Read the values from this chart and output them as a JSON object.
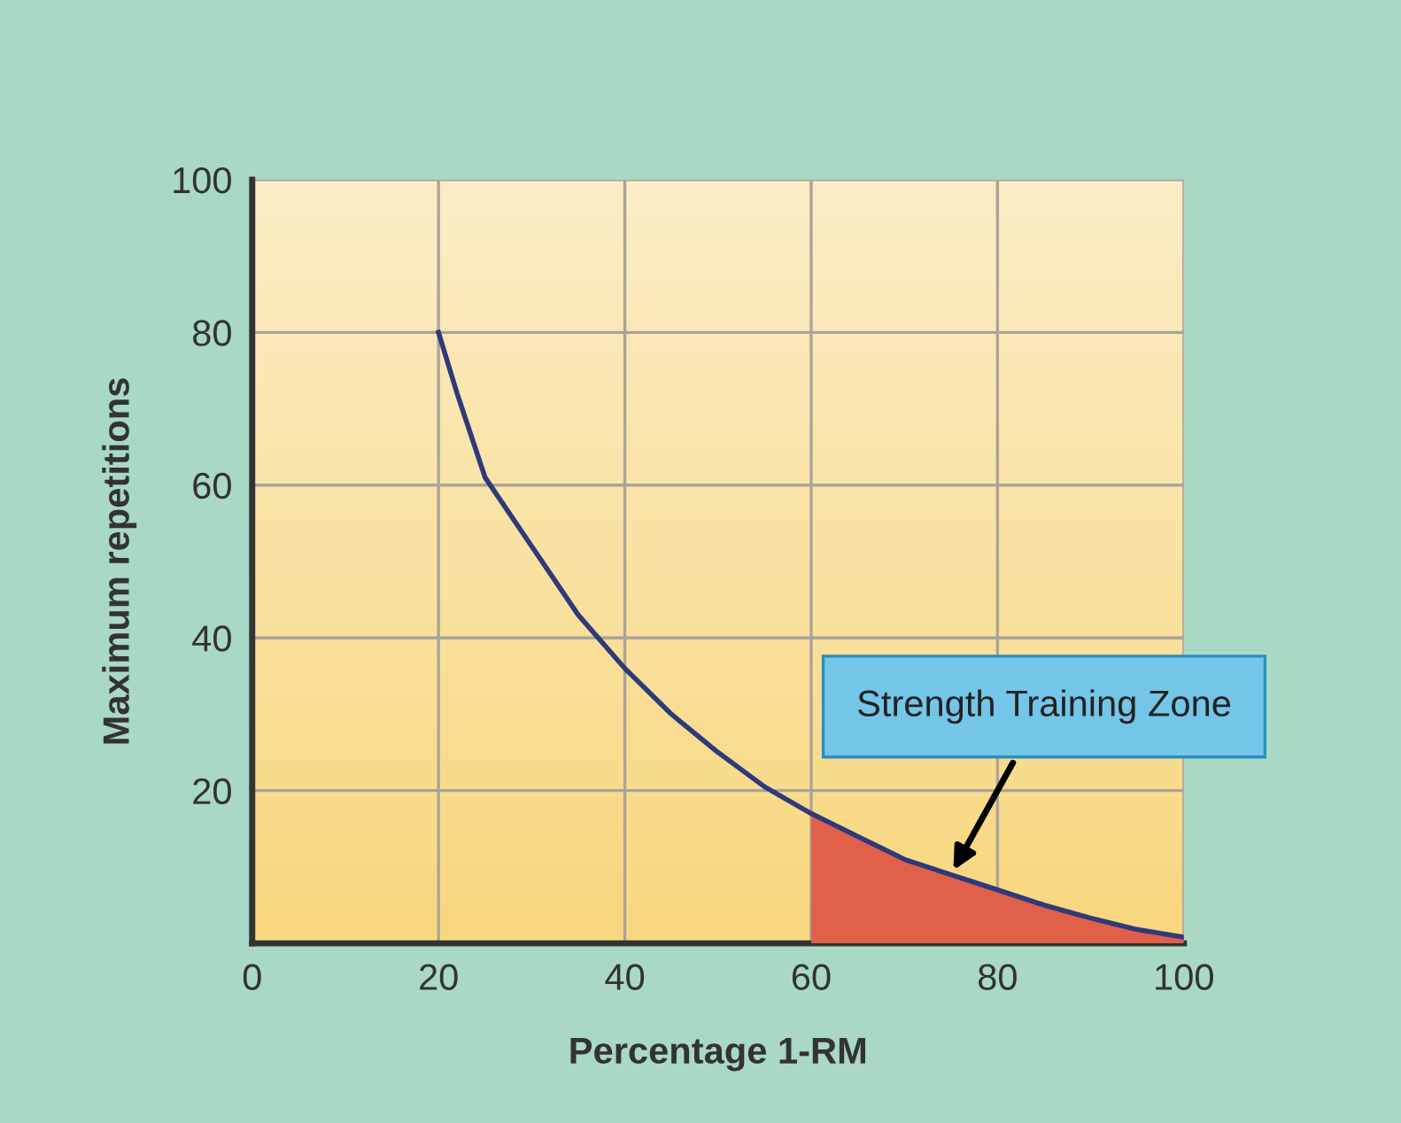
{
  "chart_data": {
    "type": "line",
    "xlabel": "Percentage 1-RM",
    "ylabel": "Maximum repetitions",
    "xlim": [
      0,
      100
    ],
    "ylim": [
      0,
      100
    ],
    "xticks": [
      0,
      20,
      40,
      60,
      80,
      100
    ],
    "yticks": [
      20,
      40,
      60,
      80,
      100
    ],
    "grid": true,
    "marker": "none",
    "line_style": "solid",
    "series": [
      {
        "color": "#2e3a7a",
        "x": [
          20,
          22,
          25,
          30,
          35,
          40,
          45,
          50,
          55,
          60,
          65,
          70,
          75,
          80,
          85,
          90,
          95,
          100
        ],
        "values": [
          80,
          72,
          61,
          52,
          43,
          36,
          30,
          25,
          20.5,
          17,
          14,
          11,
          9,
          7,
          5,
          3.3,
          1.8,
          0.8
        ]
      },
      {
        "type": "area",
        "color": "#e0604a",
        "x": [
          60,
          65,
          70,
          75,
          80,
          85,
          90,
          95,
          100
        ],
        "values": [
          17,
          14,
          11,
          9,
          7,
          5,
          3.3,
          1.8,
          0.8
        ]
      }
    ],
    "annotations": [
      {
        "text": "Strength Training Zone",
        "x": 75,
        "y": 9
      }
    ]
  }
}
